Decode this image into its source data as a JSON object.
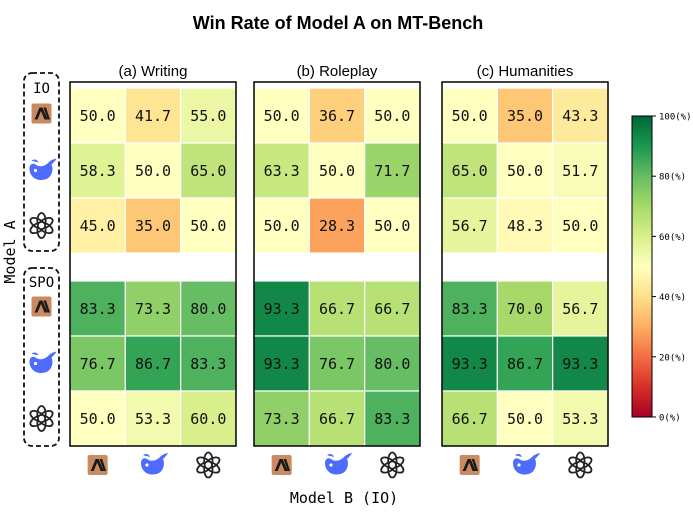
{
  "chart_data": {
    "type": "heatmap",
    "title": "Win Rate of Model A on MT-Bench",
    "xlabel": "Model B (IO)",
    "ylabel": "Model A",
    "row_groups": [
      "IO",
      "SPO"
    ],
    "row_models": [
      "claude",
      "deepseek",
      "openai"
    ],
    "col_models": [
      "claude",
      "deepseek",
      "openai"
    ],
    "colorbar": {
      "range": [
        0,
        100
      ],
      "ticks": [
        "0(%)",
        "20(%)",
        "40(%)",
        "60(%)",
        "80(%)",
        "100(%)"
      ],
      "colormap": "RdYlGn"
    },
    "panels": [
      {
        "title": "(a) Writing",
        "io": [
          [
            50.0,
            41.7,
            55.0
          ],
          [
            58.3,
            50.0,
            65.0
          ],
          [
            45.0,
            35.0,
            50.0
          ]
        ],
        "spo": [
          [
            83.3,
            73.3,
            80.0
          ],
          [
            76.7,
            86.7,
            83.3
          ],
          [
            50.0,
            53.3,
            60.0
          ]
        ]
      },
      {
        "title": "(b) Roleplay",
        "io": [
          [
            50.0,
            36.7,
            50.0
          ],
          [
            63.3,
            50.0,
            71.7
          ],
          [
            50.0,
            28.3,
            50.0
          ]
        ],
        "spo": [
          [
            93.3,
            66.7,
            66.7
          ],
          [
            93.3,
            76.7,
            80.0
          ],
          [
            73.3,
            66.7,
            83.3
          ]
        ]
      },
      {
        "title": "(c) Humanities",
        "io": [
          [
            50.0,
            35.0,
            43.3
          ],
          [
            65.0,
            50.0,
            51.7
          ],
          [
            56.7,
            48.3,
            50.0
          ]
        ],
        "spo": [
          [
            83.3,
            70.0,
            56.7
          ],
          [
            93.3,
            86.7,
            93.3
          ],
          [
            66.7,
            50.0,
            53.3
          ]
        ]
      }
    ]
  },
  "colors": {
    "claude_bg": "#c98a61",
    "deepseek_blue": "#4d6bfe",
    "openai": "#222222"
  }
}
